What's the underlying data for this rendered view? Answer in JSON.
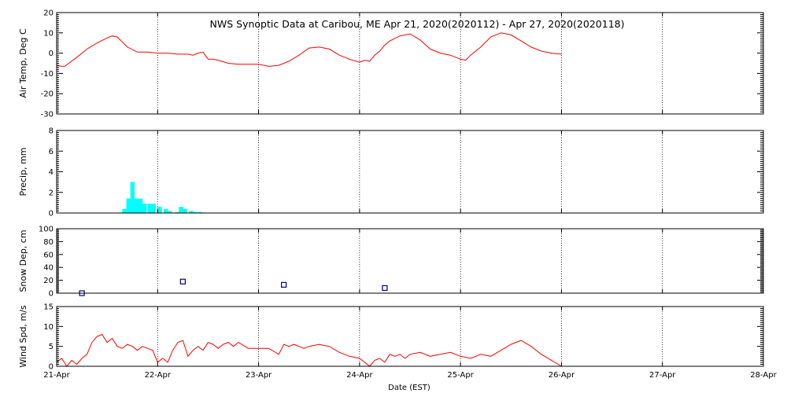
{
  "chart_data": {
    "type": "multi-panel time series",
    "title": "NWS Synoptic Data at Caribou, ME   Apr 21, 2020(2020112) - Apr 27, 2020(2020118)",
    "xlabel": "Date (EST)",
    "x_ticks": [
      "21-Apr",
      "22-Apr",
      "23-Apr",
      "24-Apr",
      "25-Apr",
      "26-Apr",
      "27-Apr",
      "28-Apr"
    ],
    "x_range_days": [
      0,
      7
    ],
    "grid": true,
    "panels": [
      {
        "name": "air-temp",
        "type": "line",
        "ylabel": "Air Temp, Deg C",
        "ylim": [
          -30,
          20
        ],
        "yticks": [
          -30,
          -20,
          -10,
          0,
          10,
          20
        ],
        "color": "#ff0000",
        "x": [
          0,
          0.05,
          0.08,
          0.12,
          0.2,
          0.3,
          0.4,
          0.5,
          0.55,
          0.6,
          0.7,
          0.8,
          0.9,
          1.0,
          1.1,
          1.2,
          1.25,
          1.3,
          1.35,
          1.4,
          1.45,
          1.5,
          1.55,
          1.6,
          1.7,
          1.8,
          1.9,
          2.0,
          2.1,
          2.2,
          2.3,
          2.4,
          2.5,
          2.6,
          2.7,
          2.8,
          2.9,
          3.0,
          3.05,
          3.1,
          3.15,
          3.2,
          3.25,
          3.3,
          3.4,
          3.5,
          3.6,
          3.7,
          3.8,
          3.9,
          4.0,
          4.05,
          4.1,
          4.15,
          4.2,
          4.3,
          4.4,
          4.5,
          4.6,
          4.7,
          4.8,
          4.9,
          5.0
        ],
        "y": [
          -6,
          -6.5,
          -6.5,
          -5,
          -2,
          2,
          5,
          7.5,
          8.5,
          8,
          3,
          0.5,
          0.5,
          0,
          0,
          -0.5,
          -0.5,
          -0.5,
          -1,
          0,
          0.5,
          -3,
          -3,
          -3.5,
          -5,
          -5.5,
          -5.5,
          -5.5,
          -6.5,
          -6,
          -4,
          -1,
          2.5,
          3,
          2,
          -1,
          -3,
          -4.5,
          -3.5,
          -4,
          -1,
          1,
          4,
          6,
          8.5,
          9.5,
          6.5,
          2,
          0,
          -1,
          -3,
          -3.5,
          -1,
          1,
          3,
          8,
          10,
          9,
          6,
          3,
          1,
          0,
          -0.5
        ]
      },
      {
        "name": "precip",
        "type": "bar",
        "ylabel": "Precip, mm",
        "ylim": [
          0,
          8
        ],
        "yticks": [
          0,
          2,
          4,
          6,
          8
        ],
        "color": "#00ffff",
        "bar_width_days": 0.0417,
        "x": [
          0.65,
          0.69,
          0.73,
          0.77,
          0.81,
          0.85,
          0.9,
          0.94,
          1.0,
          1.06,
          1.1,
          1.17,
          1.21,
          1.25,
          1.31,
          1.35,
          1.4,
          1.44
        ],
        "y": [
          0.4,
          1.4,
          3.0,
          1.4,
          1.4,
          0.9,
          0.9,
          0.9,
          0.6,
          0.4,
          0.2,
          0.1,
          0.6,
          0.4,
          0.2,
          0.1,
          0.1,
          0.05
        ]
      },
      {
        "name": "snow-depth",
        "type": "scatter",
        "ylabel": "Snow Dep, cm",
        "ylim": [
          0,
          100
        ],
        "yticks": [
          0,
          20,
          40,
          60,
          80,
          100
        ],
        "color": "#000080",
        "x": [
          0.25,
          1.25,
          2.25,
          3.25
        ],
        "y": [
          0,
          18,
          13,
          8
        ]
      },
      {
        "name": "wind-speed",
        "type": "line",
        "ylabel": "Wind Spd, m/s",
        "ylim": [
          0,
          15
        ],
        "yticks": [
          0,
          5,
          10,
          15
        ],
        "color": "#ff0000",
        "x": [
          0,
          0.05,
          0.1,
          0.15,
          0.2,
          0.25,
          0.3,
          0.35,
          0.4,
          0.45,
          0.5,
          0.55,
          0.6,
          0.65,
          0.7,
          0.75,
          0.8,
          0.85,
          0.9,
          0.95,
          1.0,
          1.05,
          1.1,
          1.15,
          1.2,
          1.25,
          1.3,
          1.35,
          1.4,
          1.45,
          1.5,
          1.55,
          1.6,
          1.65,
          1.7,
          1.75,
          1.8,
          1.9,
          2.0,
          2.1,
          2.2,
          2.25,
          2.3,
          2.35,
          2.4,
          2.45,
          2.5,
          2.6,
          2.7,
          2.8,
          2.9,
          3.0,
          3.1,
          3.15,
          3.2,
          3.25,
          3.3,
          3.35,
          3.4,
          3.45,
          3.5,
          3.6,
          3.7,
          3.8,
          3.9,
          4.0,
          4.1,
          4.2,
          4.3,
          4.4,
          4.5,
          4.6,
          4.7,
          4.8,
          4.9,
          5.0
        ],
        "y": [
          1,
          2,
          0,
          1.5,
          0.5,
          2,
          3,
          6,
          7.5,
          8,
          6,
          7,
          5,
          4.5,
          5.5,
          5,
          4,
          5,
          4.5,
          4,
          1,
          2,
          1,
          4,
          6,
          6.5,
          2.5,
          4,
          5,
          4,
          6,
          5.5,
          4.5,
          5.5,
          6,
          5,
          6,
          4.5,
          4.5,
          4.5,
          3,
          5.5,
          5,
          5.5,
          5,
          4.5,
          5,
          5.5,
          5,
          3.5,
          2.5,
          2,
          0,
          1.5,
          2,
          1,
          3,
          2.5,
          3,
          2,
          3,
          3.5,
          2.5,
          3,
          3.5,
          2.5,
          2,
          3,
          2.5,
          4,
          5.5,
          6.5,
          5,
          3,
          1.5,
          0
        ]
      }
    ]
  }
}
